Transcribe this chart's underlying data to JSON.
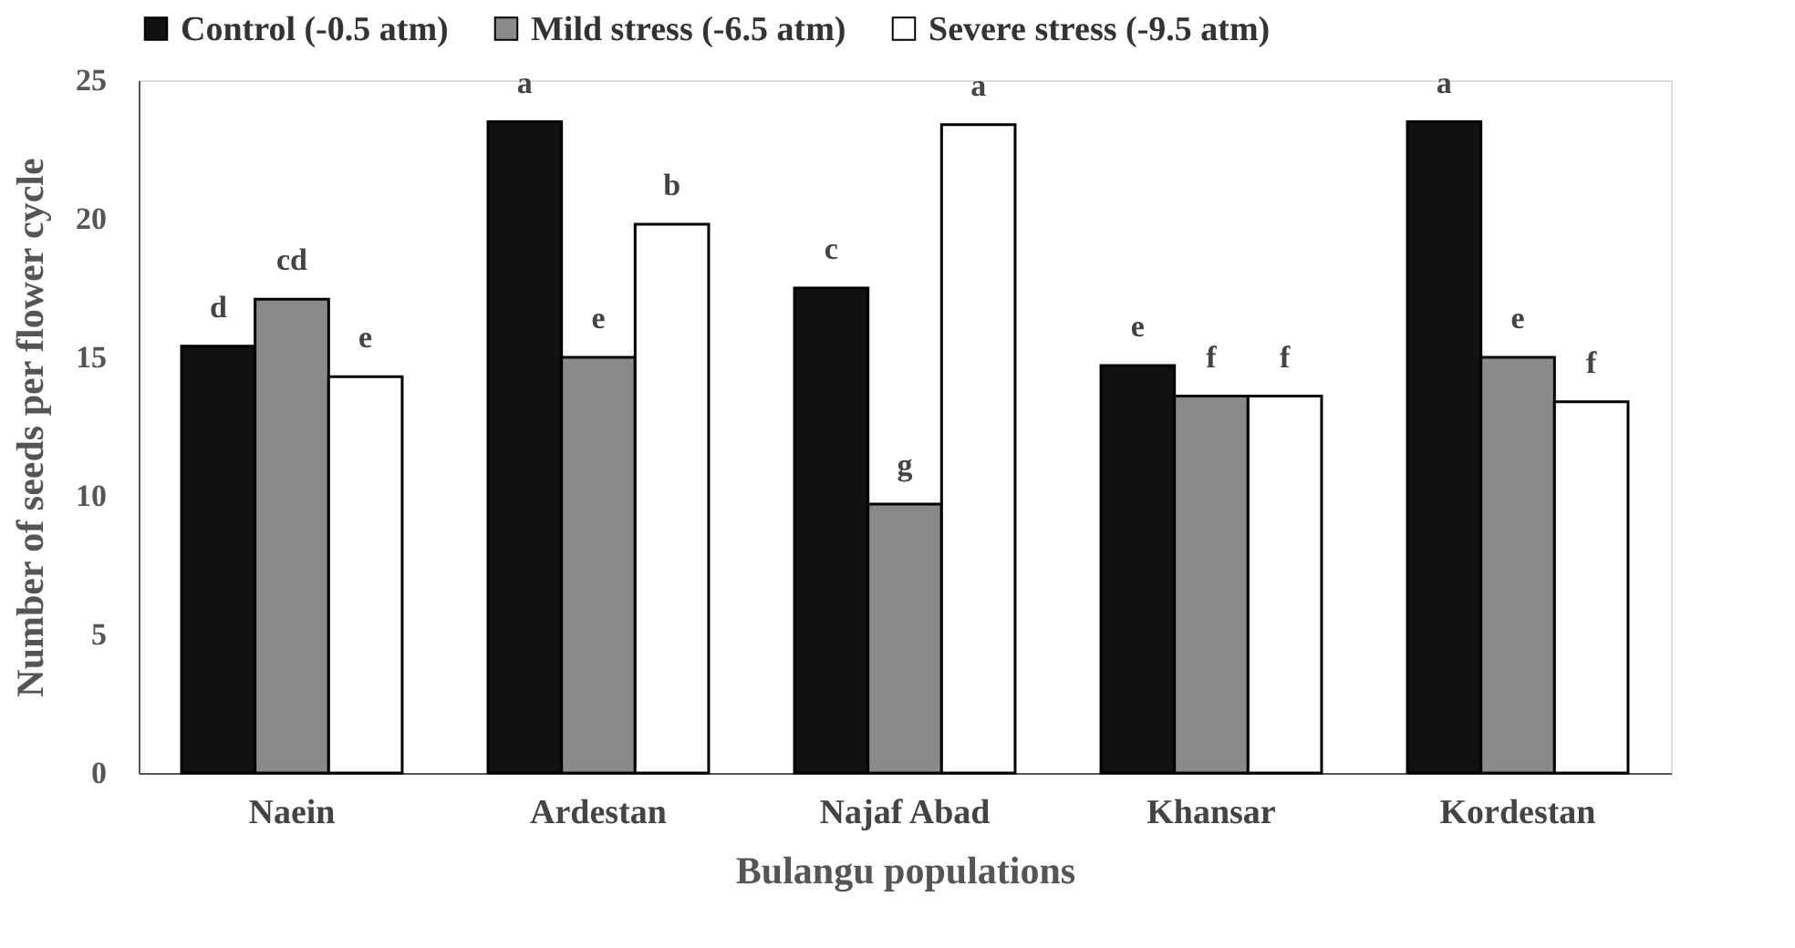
{
  "chart_data": {
    "type": "bar",
    "xlabel": "Bulangu populations",
    "ylabel": "Number of seeds per flower cycle",
    "categories": [
      "Naein",
      "Ardestan",
      "Najaf Abad",
      "Khansar",
      "Kordestan"
    ],
    "series": [
      {
        "name": "Control (-0.5 atm)",
        "color": "#111111",
        "values": [
          15.4,
          23.5,
          17.5,
          14.7,
          23.5
        ],
        "value_labels": [
          "d",
          "a",
          "c",
          "e",
          "a"
        ]
      },
      {
        "name": "Mild stress (-6.5 atm)",
        "color": "#8a8a8a",
        "values": [
          17.1,
          15.0,
          9.7,
          13.6,
          15.0
        ],
        "value_labels": [
          "cd",
          "e",
          "g",
          "f",
          "e"
        ]
      },
      {
        "name": "Severe stress (-9.5 atm)",
        "color": "#ffffff",
        "values": [
          14.3,
          19.8,
          23.4,
          13.6,
          13.4
        ],
        "value_labels": [
          "e",
          "b",
          "a",
          "f",
          "f"
        ]
      }
    ],
    "ylim": [
      0,
      25
    ],
    "yticks": [
      0,
      5,
      10,
      15,
      20,
      25
    ],
    "grid": false,
    "legend": "top"
  }
}
